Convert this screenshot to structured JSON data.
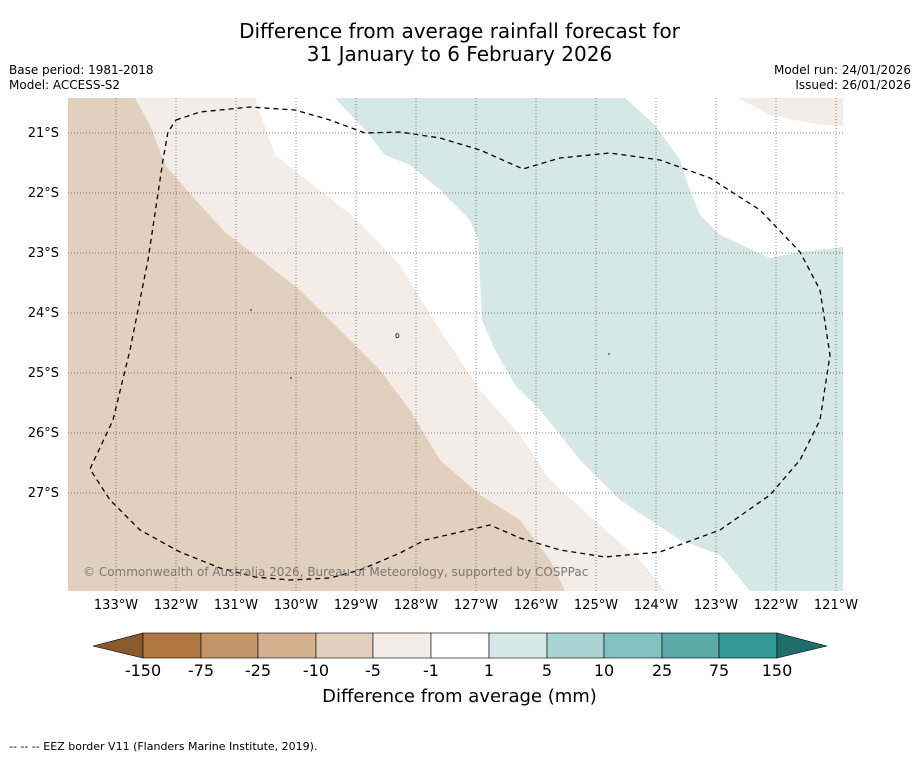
{
  "title": {
    "line1": "Difference from average rainfall forecast for",
    "line2": "31 January to 6 February 2026"
  },
  "meta": {
    "base_period": "Base period: 1981-2018",
    "model": "Model: ACCESS-S2",
    "model_run": "Model run: 24/01/2026",
    "issued": "Issued: 26/01/2026"
  },
  "map": {
    "credit": "© Commonwealth of Australia 2026, Bureau of Meteorology, supported by COSPPac",
    "lat_labels": [
      "21°S",
      "22°S",
      "23°S",
      "24°S",
      "25°S",
      "26°S",
      "27°S"
    ],
    "lon_labels": [
      "133°W",
      "132°W",
      "131°W",
      "130°W",
      "129°W",
      "128°W",
      "127°W",
      "126°W",
      "125°W",
      "124°W",
      "123°W",
      "122°W",
      "121°W"
    ],
    "colors": {
      "brown_light": "#e2d0bf",
      "brown_faint": "#f4ede7",
      "teal_faint": "#d5e8e6"
    }
  },
  "colorbar": {
    "ticks": [
      "-150",
      "-75",
      "-25",
      "-10",
      "-5",
      "-1",
      "1",
      "5",
      "10",
      "25",
      "75",
      "150"
    ],
    "colors": [
      "#8a5a2d",
      "#ae773f",
      "#c29669",
      "#d3b08f",
      "#e2d0bf",
      "#f4ede7",
      "#ffffff",
      "#d5e8e6",
      "#a9d3d1",
      "#82c1bf",
      "#5baaa8",
      "#339995",
      "#1f6e6b"
    ],
    "title": "Difference from average (mm)"
  },
  "footer": "--  --  -- EEZ border V11 (Flanders Marine Institute, 2019)."
}
